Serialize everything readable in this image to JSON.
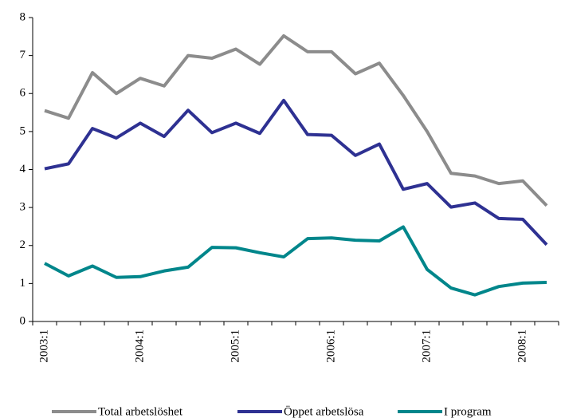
{
  "chart_data": {
    "type": "line",
    "categories": [
      "2003:1",
      null,
      null,
      null,
      "2004:1",
      null,
      null,
      null,
      "2005:1",
      null,
      null,
      null,
      "2006:1",
      null,
      null,
      null,
      "2007:1",
      null,
      null,
      null,
      "2008:1",
      null
    ],
    "series": [
      {
        "name": "Total arbetslöshet",
        "color": "#8c8c8c",
        "values": [
          5.55,
          5.35,
          6.55,
          6.0,
          6.4,
          6.2,
          7.0,
          6.93,
          7.17,
          6.77,
          7.52,
          7.1,
          7.1,
          6.52,
          6.8,
          5.95,
          5.0,
          3.9,
          3.83,
          3.63,
          3.7,
          3.05
        ]
      },
      {
        "name": "Öppet arbetslösa",
        "color": "#2e3192",
        "values": [
          4.02,
          4.15,
          5.08,
          4.83,
          5.22,
          4.87,
          5.56,
          4.97,
          5.22,
          4.95,
          5.82,
          4.92,
          4.9,
          4.37,
          4.67,
          3.48,
          3.63,
          3.01,
          3.12,
          2.71,
          2.69,
          2.02
        ]
      },
      {
        "name": "I program",
        "color": "#00868b",
        "values": [
          1.53,
          1.2,
          1.46,
          1.16,
          1.18,
          1.33,
          1.43,
          1.95,
          1.94,
          1.81,
          1.7,
          2.18,
          2.2,
          2.14,
          2.12,
          2.49,
          1.37,
          0.88,
          0.7,
          0.92,
          1.01,
          1.03
        ]
      }
    ],
    "ylim": [
      0,
      8
    ],
    "yticks": [
      0,
      1,
      2,
      3,
      4,
      5,
      6,
      7,
      8
    ],
    "grid": false,
    "legend": "bottom"
  }
}
